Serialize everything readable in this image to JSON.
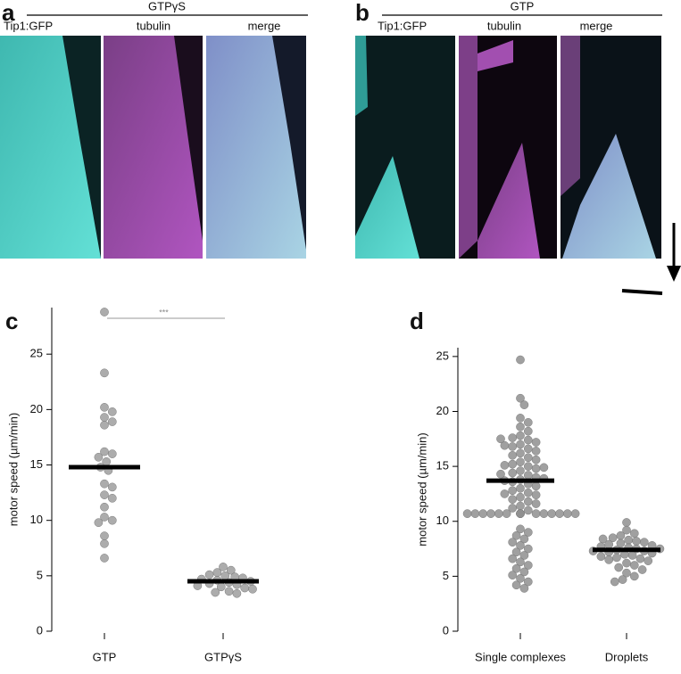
{
  "panels": {
    "a": {
      "letter": "a",
      "header": "GTPγS",
      "channels": [
        "Tip1:GFP",
        "tubulin",
        "merge"
      ]
    },
    "b": {
      "letter": "b",
      "header": "GTP",
      "channels": [
        "Tip1:GFP",
        "tubulin",
        "merge"
      ]
    }
  },
  "chart_data": [
    {
      "type": "strip",
      "letter": "c",
      "ylabel": "motor speed (µm/min)",
      "categories": [
        "GTP",
        "GTPγS"
      ],
      "values": [
        [
          28.8,
          23.3,
          20.2,
          19.8,
          19.3,
          18.9,
          18.6,
          16.2,
          16.0,
          15.7,
          15.3,
          14.8,
          14.5,
          13.3,
          13.0,
          12.3,
          12.0,
          11.2,
          10.3,
          10.0,
          9.8,
          8.6,
          7.9,
          6.6
        ],
        [
          5.8,
          5.5,
          5.3,
          5.1,
          5.0,
          4.9,
          4.8,
          4.7,
          4.6,
          4.5,
          4.4,
          4.3,
          4.2,
          4.1,
          4.0,
          3.9,
          3.8,
          3.6,
          3.5,
          3.4
        ]
      ],
      "means": [
        14.8,
        4.5
      ],
      "annotation": "***",
      "color": "#9e9e9e",
      "mean_color": "#000000",
      "ylim": [
        0,
        29.2
      ],
      "yticks": [
        0,
        5,
        10,
        15,
        20,
        25
      ]
    },
    {
      "type": "strip",
      "letter": "d",
      "ylabel": "motor speed (µm/min)",
      "categories": [
        "Single complexes",
        "Droplets"
      ],
      "values": [
        [
          24.7,
          21.2,
          20.6,
          19.4,
          19.0,
          18.6,
          18.2,
          17.8,
          17.6,
          17.4,
          17.2,
          17.0,
          16.8,
          16.6,
          16.4,
          16.2,
          16.0,
          15.8,
          15.6,
          15.4,
          15.2,
          15.0,
          14.8,
          14.6,
          14.4,
          14.2,
          14.0,
          13.8,
          13.6,
          13.4,
          13.2,
          13.0,
          12.8,
          12.6,
          12.4,
          12.2,
          12.0,
          11.8,
          11.6,
          11.4,
          11.2,
          11.0,
          10.7,
          10.7,
          10.7,
          10.7,
          10.7,
          10.7,
          10.7,
          10.7,
          10.7,
          10.7,
          10.7,
          10.7,
          10.7,
          10.7,
          10.7,
          9.3,
          9.0,
          8.7,
          8.4,
          8.1,
          7.8,
          7.5,
          7.2,
          6.9,
          6.6,
          6.3,
          6.0,
          5.7,
          5.4,
          5.1,
          4.8,
          4.5,
          4.2,
          3.9,
          15.1,
          14.9,
          13.7,
          13.9,
          16.9,
          17.5,
          12.5,
          14.3
        ],
        [
          9.9,
          9.2,
          8.9,
          8.7,
          8.5,
          8.3,
          8.2,
          8.1,
          8.0,
          7.9,
          7.8,
          7.7,
          7.6,
          7.5,
          7.4,
          7.3,
          7.2,
          7.1,
          7.0,
          6.9,
          6.8,
          6.7,
          6.6,
          6.5,
          6.4,
          6.2,
          6.0,
          5.8,
          5.6,
          5.3,
          5.0,
          4.7,
          4.5,
          7.5,
          7.3,
          8.4
        ]
      ],
      "means": [
        13.7,
        7.4
      ],
      "color": "#8f8f8f",
      "mean_color": "#000000",
      "ylim": [
        0,
        25.8
      ],
      "yticks": [
        0,
        5,
        10,
        15,
        20,
        25
      ]
    }
  ]
}
